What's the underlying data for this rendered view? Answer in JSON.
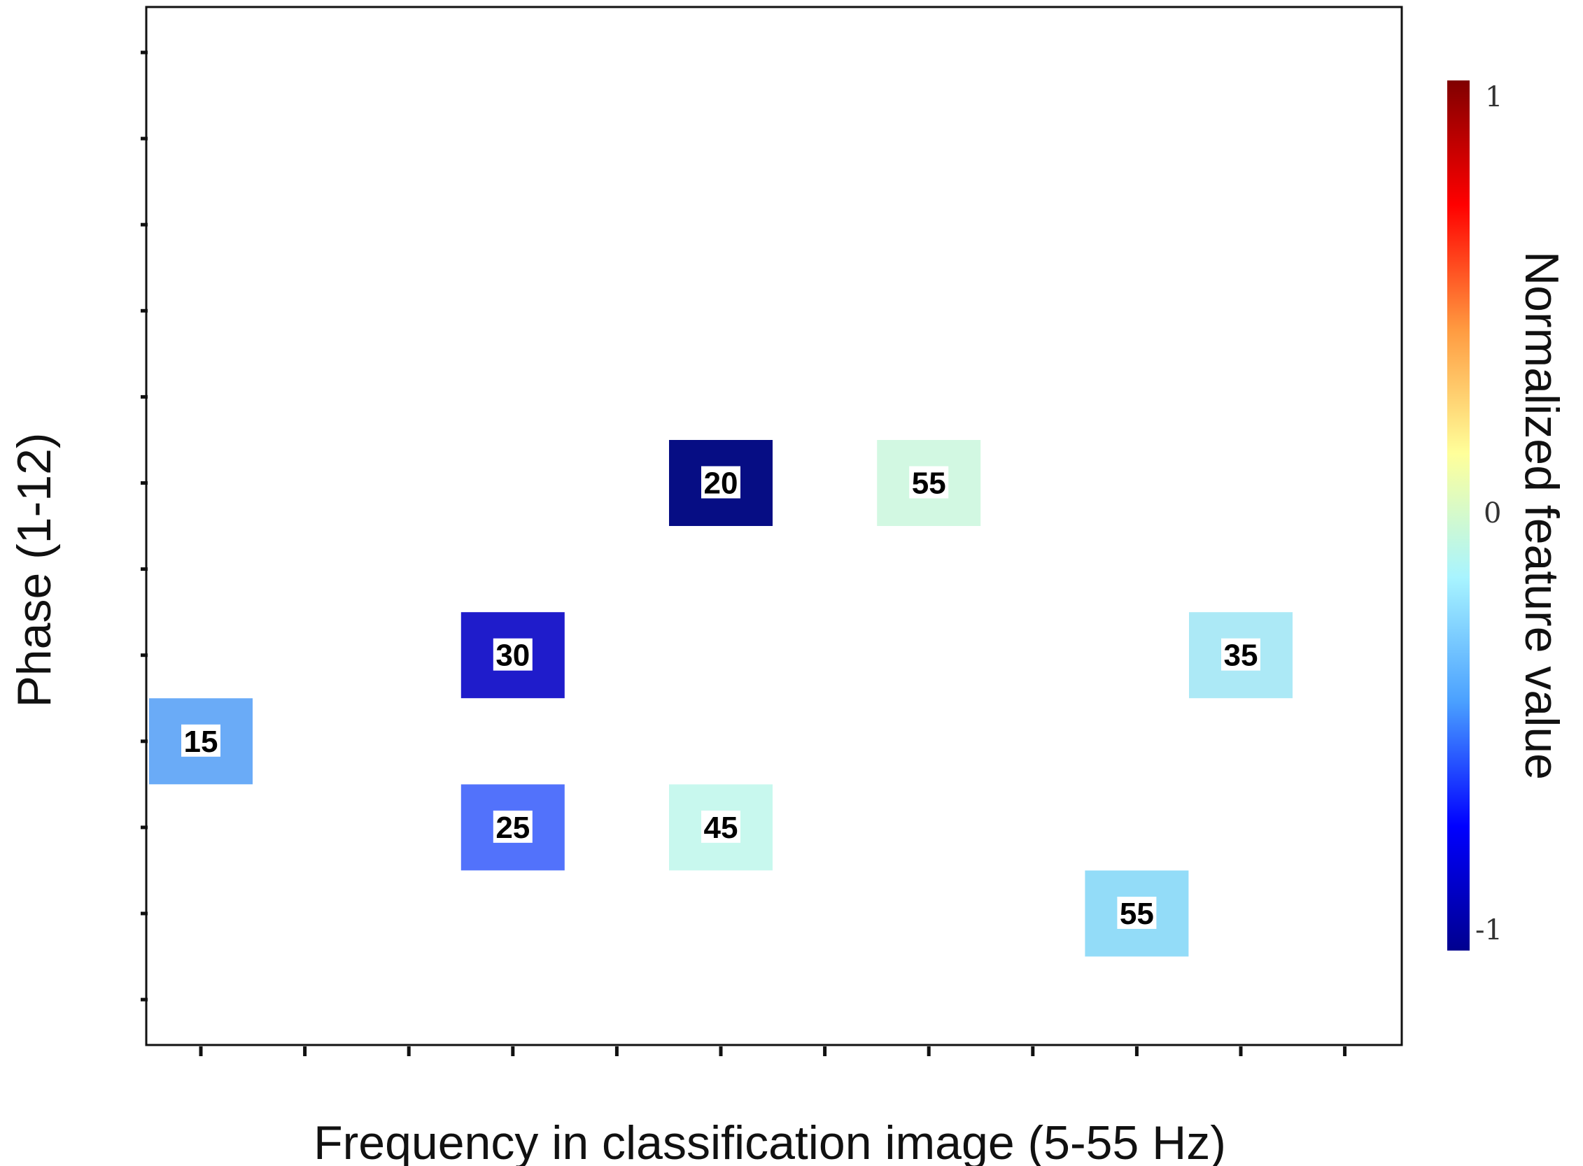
{
  "chart_data": {
    "type": "heatmap",
    "title": "",
    "xlabel": "Frequency in classification image (5-55 Hz)",
    "ylabel": "Phase (1-12)",
    "x_tick_count": 12,
    "y_tick_count": 12,
    "grid": false,
    "colorbar": {
      "label": "Normalized feature value",
      "ticks": [
        "1",
        "0",
        "-1"
      ],
      "range": [
        -1,
        1
      ],
      "colors": [
        "#00008f",
        "#0000ff",
        "#4aa0ff",
        "#a8f4ff",
        "#ffff9a",
        "#ff9a40",
        "#ff0000",
        "#800000"
      ]
    },
    "cells": [
      {
        "col": 1,
        "row": 9,
        "label": "15",
        "value": -0.55,
        "color": "#6aabf7"
      },
      {
        "col": 4,
        "row": 8,
        "label": "30",
        "value": -0.92,
        "color": "#1f1ccb"
      },
      {
        "col": 4,
        "row": 10,
        "label": "25",
        "value": -0.75,
        "color": "#5272fb"
      },
      {
        "col": 6,
        "row": 6,
        "label": "20",
        "value": -1.0,
        "color": "#060d84"
      },
      {
        "col": 6,
        "row": 10,
        "label": "45",
        "value": -0.05,
        "color": "#c8f8ee"
      },
      {
        "col": 8,
        "row": 6,
        "label": "55",
        "value": 0.0,
        "color": "#d2f8e2"
      },
      {
        "col": 10,
        "row": 11,
        "label": "55",
        "value": -0.35,
        "color": "#93dcf8"
      },
      {
        "col": 11,
        "row": 8,
        "label": "35",
        "value": -0.22,
        "color": "#ace9f6"
      }
    ]
  }
}
